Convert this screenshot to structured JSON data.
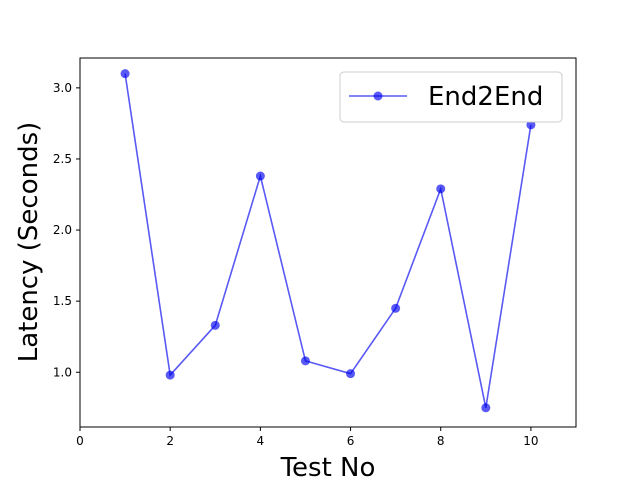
{
  "chart_data": {
    "type": "line",
    "title": "",
    "xlabel": "Test No",
    "ylabel": "Latency (Seconds)",
    "xlim": [
      0,
      11
    ],
    "ylim": [
      0.615,
      3.21
    ],
    "xticks": [
      0,
      2,
      4,
      6,
      8,
      10
    ],
    "yticks": [
      1.0,
      1.5,
      2.0,
      2.5,
      3.0
    ],
    "grid": false,
    "legend_position": "upper-right",
    "series": [
      {
        "name": "End2End",
        "color": "#0000ee",
        "marker": "circle",
        "x": [
          1,
          2,
          3,
          4,
          5,
          6,
          7,
          8,
          9,
          10
        ],
        "y": [
          3.1,
          0.98,
          1.33,
          2.38,
          1.08,
          0.99,
          1.45,
          2.29,
          0.75,
          2.74
        ]
      }
    ]
  }
}
